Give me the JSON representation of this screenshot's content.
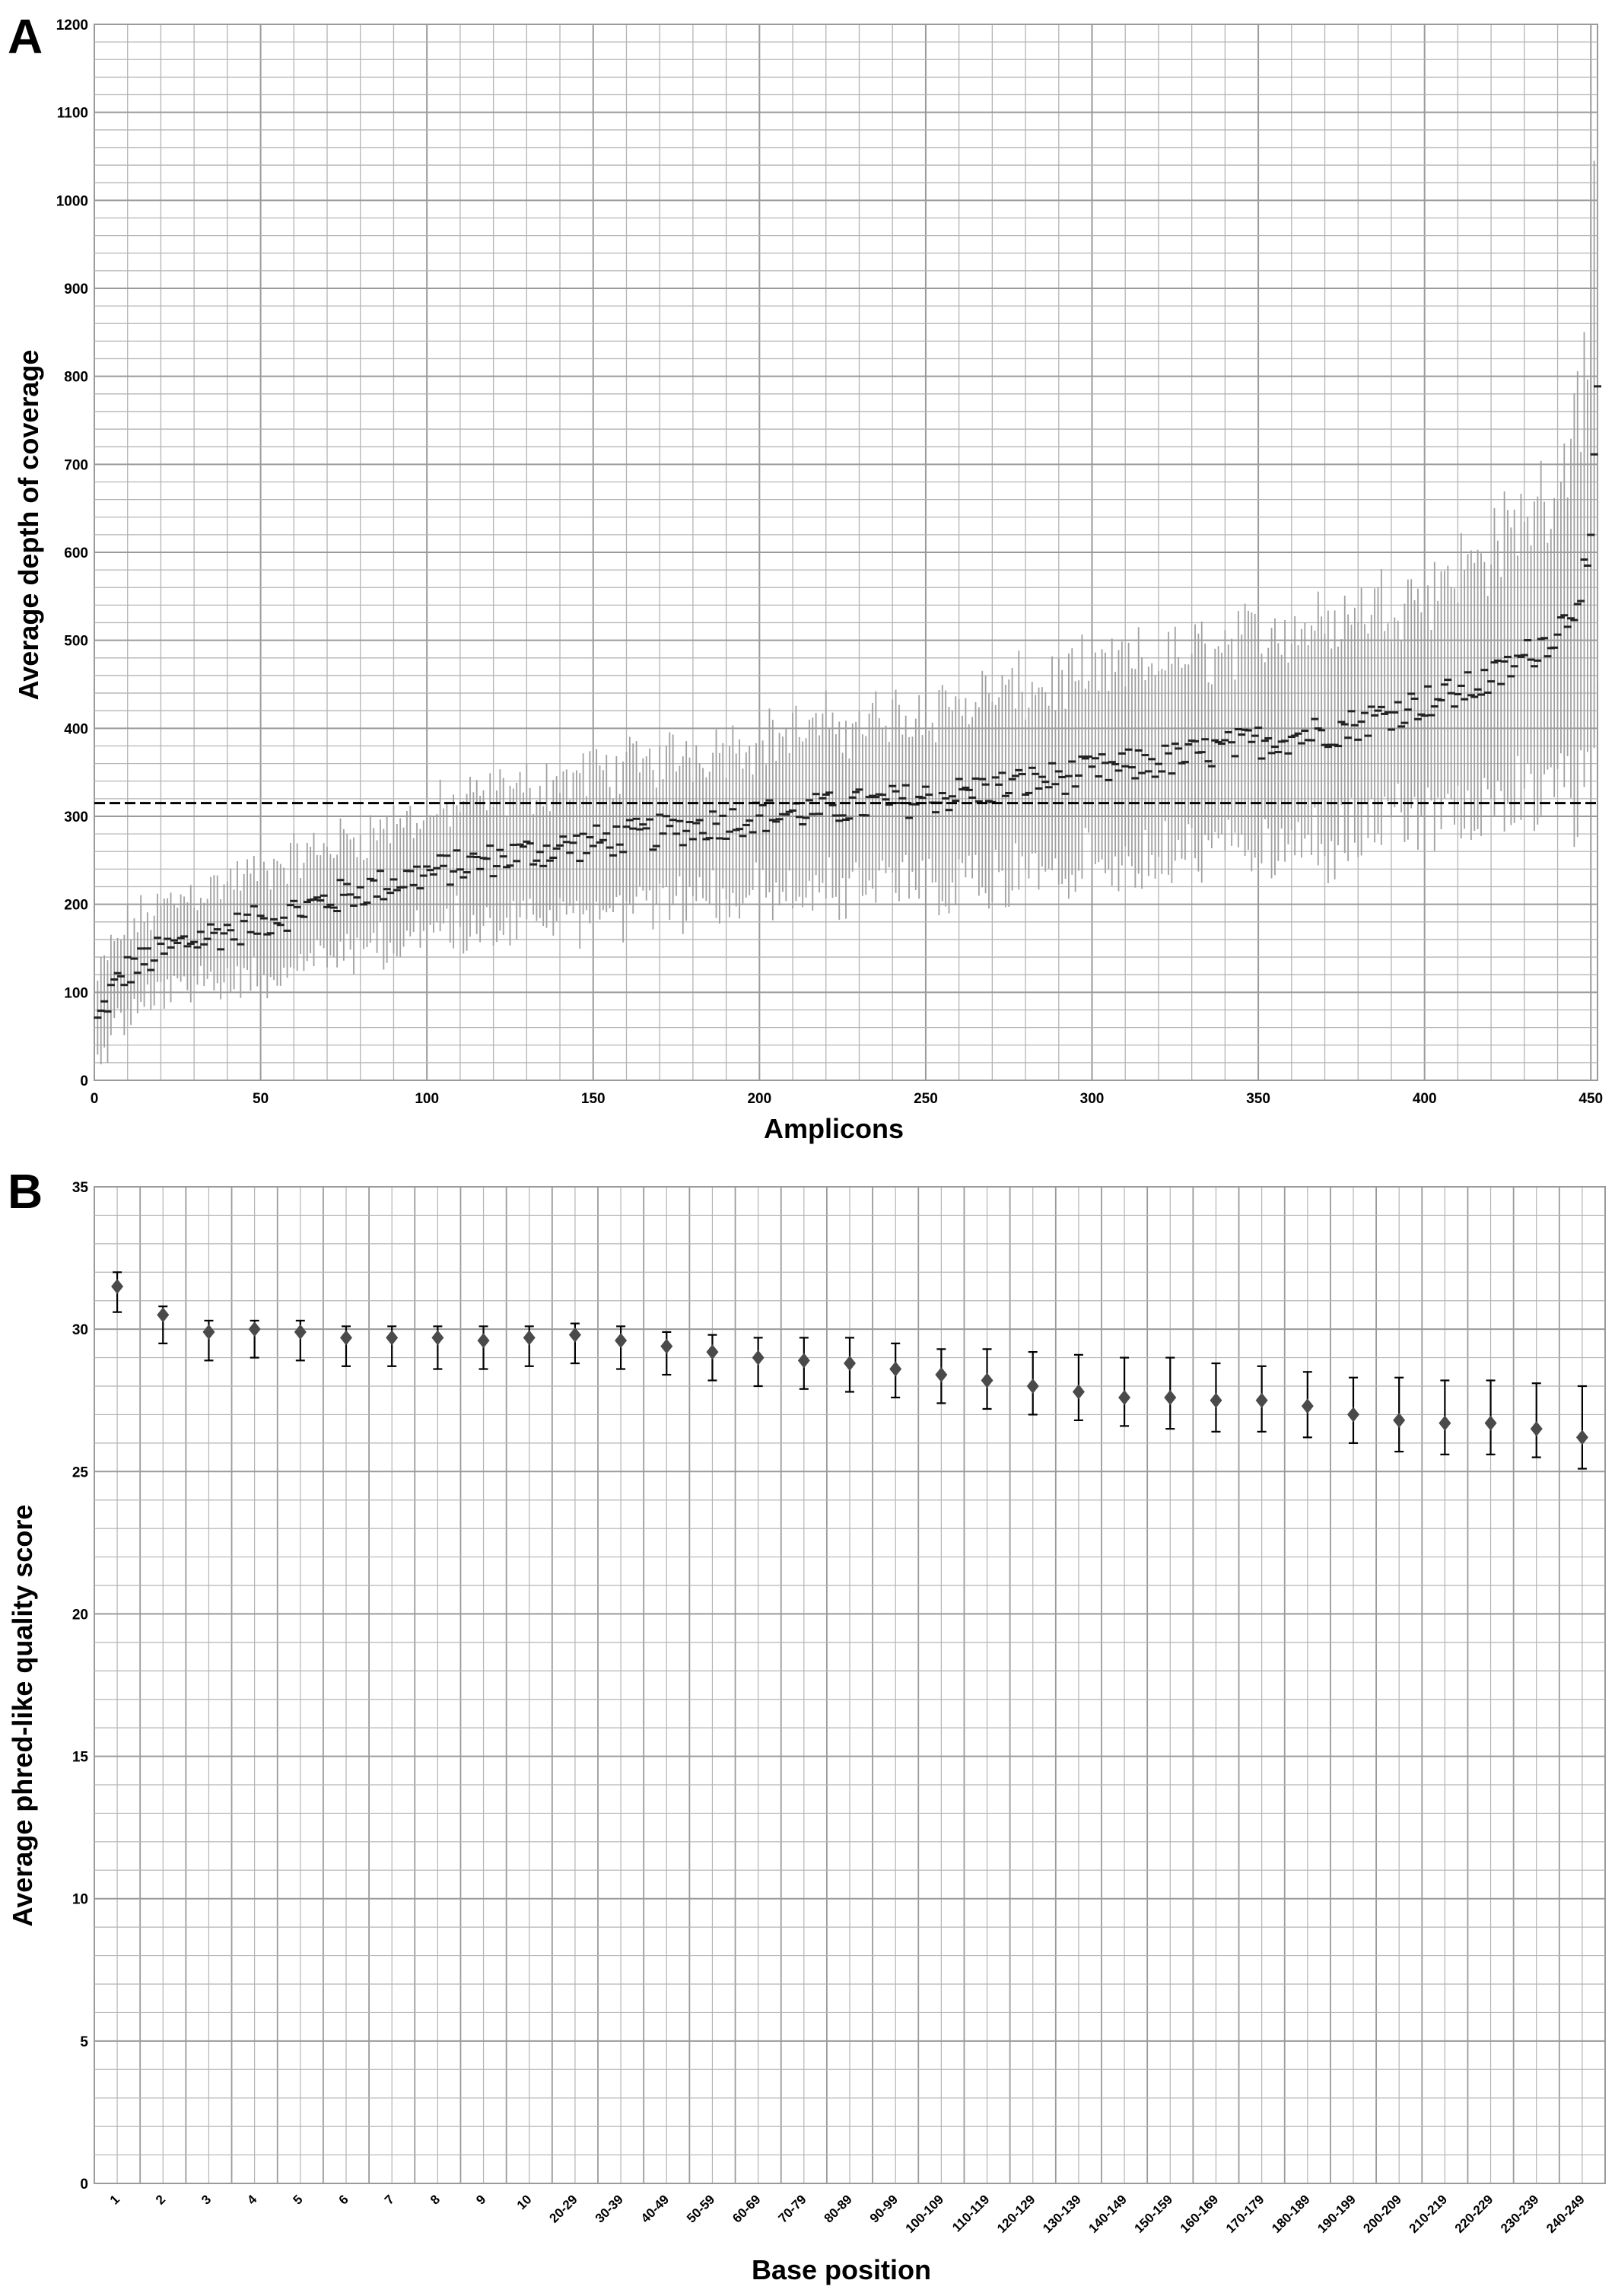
{
  "chart_data": [
    {
      "panel_label": "A",
      "type": "scatter",
      "xlabel": "Amplicons",
      "ylabel": "Average depth of coverage",
      "xlim": [
        0,
        452
      ],
      "ylim": [
        0,
        1200
      ],
      "x_ticks": [
        0,
        50,
        100,
        150,
        200,
        250,
        300,
        350,
        400,
        450
      ],
      "y_ticks": [
        0,
        100,
        200,
        300,
        400,
        500,
        600,
        700,
        800,
        900,
        1000,
        1100,
        1200
      ],
      "grid": true,
      "reference_line": {
        "y": 315,
        "style": "dashed"
      },
      "colors": {
        "points": "#222222",
        "error_bars": "#a0a0a0",
        "grid": "#b4b4b4",
        "reference_line": "#000000"
      },
      "series": [
        {
          "marker": "short horizontal dash with vertical error bar per amplicon",
          "mean_profile": {
            "x": [
              1,
              5,
              10,
              20,
              30,
              40,
              50,
              75,
              100,
              125,
              150,
              175,
              200,
              225,
              250,
              275,
              300,
              325,
              350,
              375,
              400,
              410,
              420,
              430,
              440,
              445,
              450,
              452
            ],
            "y": [
              65,
              100,
              125,
              145,
              160,
              170,
              180,
              210,
              235,
              255,
              270,
              285,
              300,
              310,
              320,
              335,
              350,
              365,
              385,
              400,
              430,
              440,
              455,
              480,
              510,
              540,
              600,
              785
            ]
          },
          "error_half_width_profile": {
            "x": [
              1,
              50,
              100,
              200,
              300,
              400,
              440,
              452
            ],
            "y": [
              45,
              55,
              65,
              85,
              105,
              125,
              160,
              260
            ]
          }
        }
      ]
    },
    {
      "panel_label": "B",
      "type": "scatter",
      "xlabel": "Base position",
      "ylabel": "Average phred-like quality score",
      "categories": [
        "1",
        "2",
        "3",
        "4",
        "5",
        "6",
        "7",
        "8",
        "9",
        "10",
        "20-29",
        "30-39",
        "40-49",
        "50-59",
        "60-69",
        "70-79",
        "80-89",
        "90-99",
        "100-109",
        "110-119",
        "120-129",
        "130-139",
        "140-149",
        "150-159",
        "160-169",
        "170-179",
        "180-189",
        "190-199",
        "200-209",
        "210-219",
        "220-229",
        "230-239",
        "240-249"
      ],
      "ylim": [
        0,
        35
      ],
      "y_ticks": [
        0,
        5,
        10,
        15,
        20,
        25,
        30,
        35
      ],
      "grid": true,
      "colors": {
        "points": "#4a4a4a",
        "error_bars": "#000000",
        "grid": "#b4b4b4"
      },
      "series": [
        {
          "marker": "diamond",
          "values": [
            31.5,
            30.5,
            29.9,
            30.0,
            29.9,
            29.7,
            29.7,
            29.7,
            29.6,
            29.7,
            29.8,
            29.6,
            29.4,
            29.2,
            29.0,
            28.9,
            28.8,
            28.6,
            28.4,
            28.2,
            28.0,
            27.8,
            27.6,
            27.6,
            27.5,
            27.5,
            27.3,
            27.0,
            26.8,
            26.7,
            26.7,
            26.5,
            26.2
          ],
          "error_low": [
            30.6,
            29.5,
            28.9,
            29.0,
            28.9,
            28.7,
            28.7,
            28.6,
            28.6,
            28.7,
            28.8,
            28.6,
            28.4,
            28.2,
            28.0,
            27.9,
            27.8,
            27.6,
            27.4,
            27.2,
            27.0,
            26.8,
            26.6,
            26.5,
            26.4,
            26.4,
            26.2,
            26.0,
            25.7,
            25.6,
            25.6,
            25.5,
            25.1
          ],
          "error_high": [
            32.0,
            30.8,
            30.3,
            30.3,
            30.3,
            30.1,
            30.1,
            30.1,
            30.1,
            30.1,
            30.2,
            30.1,
            29.9,
            29.8,
            29.7,
            29.7,
            29.7,
            29.5,
            29.3,
            29.3,
            29.2,
            29.1,
            29.0,
            29.0,
            28.8,
            28.7,
            28.5,
            28.3,
            28.3,
            28.2,
            28.2,
            28.1,
            28.0
          ]
        }
      ]
    }
  ]
}
